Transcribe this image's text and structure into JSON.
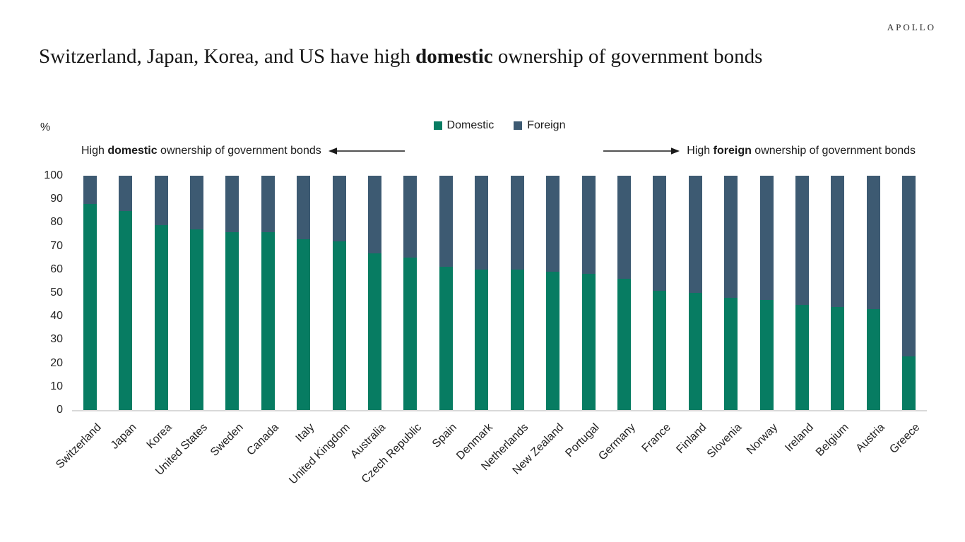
{
  "brand": {
    "name": "APOLLO"
  },
  "title": {
    "pre": "Switzerland, Japan, Korea, and US have high ",
    "bold": "domestic",
    "post": " ownership of government bonds"
  },
  "annotations": {
    "left": {
      "pre": "High ",
      "bold": "domestic",
      "post": " ownership of government bonds"
    },
    "right": {
      "pre": "High ",
      "bold": "foreign",
      "post": " ownership of government bonds"
    }
  },
  "chart_data": {
    "type": "bar",
    "stacked": true,
    "title": "Switzerland, Japan, Korea, and US have high domestic ownership of government bonds",
    "categories": [
      "Switzerland",
      "Japan",
      "Korea",
      "United States",
      "Sweden",
      "Canada",
      "Italy",
      "United Kingdom",
      "Australia",
      "Czech Republic",
      "Spain",
      "Denmark",
      "Netherlands",
      "New Zealand",
      "Portugal",
      "Germany",
      "France",
      "Finland",
      "Slovenia",
      "Norway",
      "Ireland",
      "Belgium",
      "Austria",
      "Greece"
    ],
    "series": [
      {
        "name": "Domestic",
        "color": "#077C62",
        "values": [
          88,
          85,
          79,
          77,
          76,
          76,
          73,
          72,
          67,
          65,
          61,
          60,
          60,
          59,
          58,
          56,
          51,
          50,
          48,
          47,
          45,
          44,
          43,
          23
        ]
      },
      {
        "name": "Foreign",
        "color": "#3D5A72",
        "values": [
          12,
          15,
          21,
          23,
          24,
          24,
          27,
          28,
          33,
          35,
          39,
          40,
          40,
          41,
          42,
          44,
          49,
          50,
          52,
          53,
          55,
          56,
          57,
          77
        ]
      }
    ],
    "xlabel": "",
    "ylabel": "%",
    "ylim": [
      0,
      100
    ],
    "y_ticks": [
      0,
      10,
      20,
      30,
      40,
      50,
      60,
      70,
      80,
      90,
      100
    ],
    "grid": false,
    "legend_position": "top-center",
    "axis_line_color": "#D9D9D9",
    "text_color": "#1A1A1A"
  }
}
